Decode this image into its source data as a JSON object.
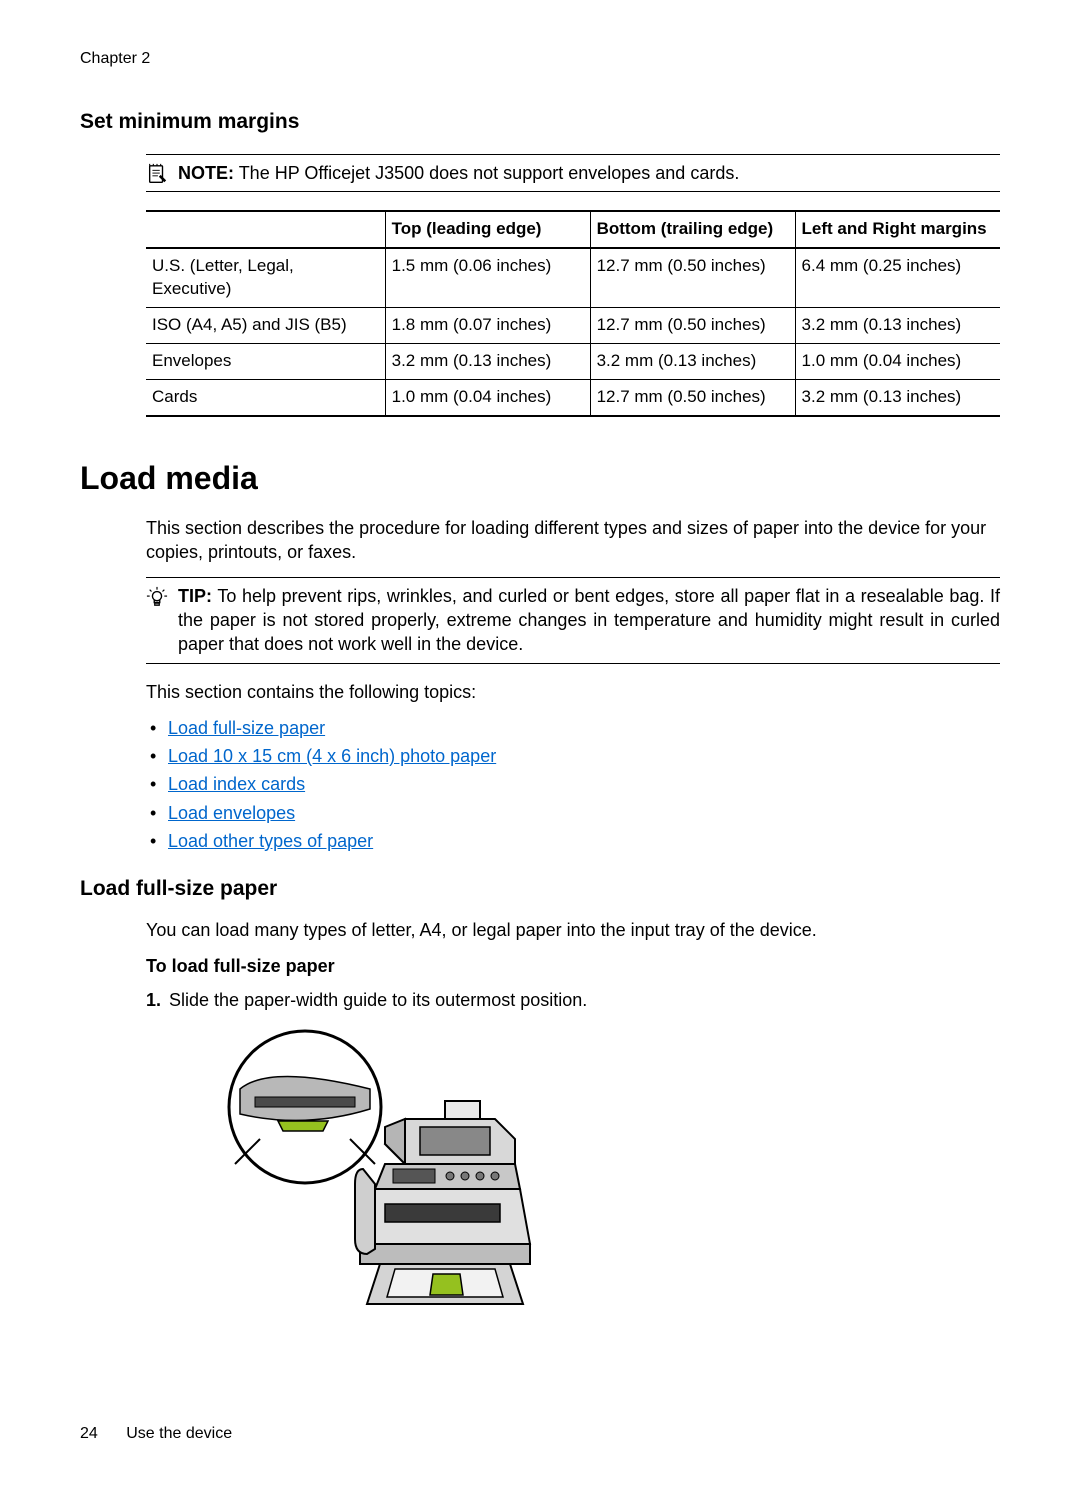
{
  "chapter": "Chapter 2",
  "section1": {
    "heading": "Set minimum margins",
    "note_label": "NOTE:",
    "note_text": "The HP Officejet J3500 does not support envelopes and cards."
  },
  "margins_table": {
    "headers": [
      "",
      "Top (leading edge)",
      "Bottom (trailing edge)",
      "Left and Right margins"
    ],
    "rows": [
      [
        "U.S. (Letter, Legal, Executive)",
        "1.5 mm (0.06 inches)",
        "12.7 mm (0.50 inches)",
        "6.4 mm (0.25 inches)"
      ],
      [
        "ISO (A4, A5) and JIS (B5)",
        "1.8 mm (0.07 inches)",
        "12.7 mm (0.50 inches)",
        "3.2 mm (0.13 inches)"
      ],
      [
        "Envelopes",
        "3.2 mm (0.13 inches)",
        "3.2 mm (0.13 inches)",
        "1.0 mm (0.04 inches)"
      ],
      [
        "Cards",
        "1.0 mm (0.04 inches)",
        "12.7 mm (0.50 inches)",
        "3.2 mm (0.13 inches)"
      ]
    ]
  },
  "section2": {
    "heading": "Load media",
    "intro": "This section describes the procedure for loading different types and sizes of paper into the device for your copies, printouts, or faxes.",
    "tip_label": "TIP:",
    "tip_text": "To help prevent rips, wrinkles, and curled or bent edges, store all paper flat in a resealable bag. If the paper is not stored properly, extreme changes in temperature and humidity might result in curled paper that does not work well in the device.",
    "topics_intro": "This section contains the following topics:",
    "topics": [
      "Load full-size paper",
      "Load 10 x 15 cm (4 x 6 inch) photo paper",
      "Load index cards",
      "Load envelopes",
      "Load other types of paper"
    ]
  },
  "section3": {
    "heading": "Load full-size paper",
    "intro": "You can load many types of letter, A4, or legal paper into the input tray of the device.",
    "sub_heading": "To load full-size paper",
    "step_num": "1.",
    "step_text": "Slide the paper-width guide to its outermost position."
  },
  "footer": {
    "page": "24",
    "title": "Use the device"
  },
  "colors": {
    "link": "#0066cc",
    "text": "#000000",
    "accent": "#95c11f"
  }
}
